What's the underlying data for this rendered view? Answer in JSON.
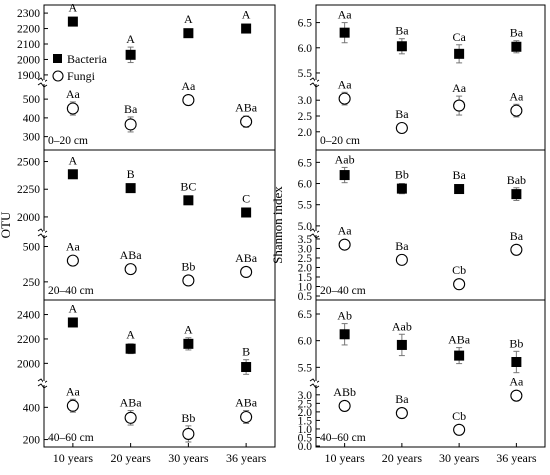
{
  "chart_data": {
    "type": "scatter",
    "legend": {
      "position": "top-left",
      "entries": [
        "Bacteria",
        "Fungi"
      ]
    },
    "x_categories": [
      "10 years",
      "20 years",
      "30 years",
      "36 years"
    ],
    "ylabels": {
      "left": "OTU",
      "right": "Shannon index"
    },
    "panels": [
      {
        "depth": "0–20 cm",
        "column": "OTU",
        "upper": {
          "ylim": [
            1880,
            2320
          ],
          "ticks": [
            1900,
            2000,
            2100,
            2200,
            2300
          ],
          "series": {
            "name": "Bacteria",
            "values": [
              2245,
              2030,
              2170,
              2200
            ],
            "errors": [
              25,
              50,
              25,
              20
            ],
            "labels": [
              "A",
              "A",
              "A",
              "A"
            ]
          }
        },
        "lower": {
          "ylim": [
            250,
            570
          ],
          "ticks": [
            300,
            400,
            500
          ],
          "series": {
            "name": "Fungi",
            "values": [
              450,
              365,
              495,
              380
            ],
            "errors": [
              35,
              40,
              25,
              30
            ],
            "labels": [
              "Aa",
              "Ba",
              "Aa",
              "ABa"
            ]
          }
        }
      },
      {
        "depth": "0–20 cm",
        "column": "Shannon index",
        "upper": {
          "ylim": [
            5.4,
            6.75
          ],
          "ticks": [
            5.5,
            6.0,
            6.5
          ],
          "series": {
            "name": "Bacteria",
            "values": [
              6.3,
              6.03,
              5.88,
              6.02
            ],
            "errors": [
              0.2,
              0.15,
              0.18,
              0.12
            ],
            "labels": [
              "Aa",
              "Ba",
              "Ca",
              "Ba"
            ]
          }
        },
        "lower": {
          "ylim": [
            1.55,
            3.45
          ],
          "ticks": [
            2.0,
            2.5,
            3.0
          ],
          "series": {
            "name": "Fungi",
            "values": [
              3.05,
              2.12,
              2.83,
              2.67
            ],
            "errors": [
              0.2,
              0.15,
              0.3,
              0.2
            ],
            "labels": [
              "Aa",
              "Ba",
              "Aa",
              "Aa"
            ]
          }
        }
      },
      {
        "depth": "20–40 cm",
        "column": "OTU",
        "upper": {
          "ylim": [
            1900,
            2550
          ],
          "ticks": [
            2000,
            2250,
            2500
          ],
          "series": {
            "name": "Bacteria",
            "values": [
              2385,
              2260,
              2150,
              2040
            ],
            "errors": [
              25,
              25,
              15,
              25
            ],
            "labels": [
              "A",
              "B",
              "BC",
              "C"
            ]
          }
        },
        "lower": {
          "ylim": [
            150,
            560
          ],
          "ticks": [
            250,
            500
          ],
          "series": {
            "name": "Fungi",
            "values": [
              400,
              340,
              260,
              320
            ],
            "errors": [
              20,
              15,
              15,
              20
            ],
            "labels": [
              "Aa",
              "ABa",
              "Bb",
              "ABa"
            ]
          }
        }
      },
      {
        "depth": "20–40 cm",
        "column": "Shannon index",
        "upper": {
          "ylim": [
            4.95,
            6.65
          ],
          "ticks": [
            5.0,
            5.5,
            6.0,
            6.5
          ],
          "series": {
            "name": "Bacteria",
            "values": [
              6.2,
              5.88,
              5.87,
              5.75
            ],
            "errors": [
              0.18,
              0.12,
              0.1,
              0.15
            ],
            "labels": [
              "Aab",
              "Bb",
              "Ba",
              "Bab"
            ]
          }
        },
        "lower": {
          "ylim": [
            0.5,
            3.55
          ],
          "ticks": [
            0.5,
            1.0,
            1.5,
            2.0,
            2.5,
            3.0,
            3.5
          ],
          "series": {
            "name": "Fungi",
            "values": [
              3.2,
              2.4,
              1.12,
              2.93
            ],
            "errors": [
              0.1,
              0.08,
              0.22,
              0.08
            ],
            "labels": [
              "Aa",
              "Ba",
              "Cb",
              "Ba"
            ]
          }
        }
      },
      {
        "depth": "40–60 cm",
        "column": "OTU",
        "upper": {
          "ylim": [
            1880,
            2470
          ],
          "ticks": [
            2000,
            2200,
            2400
          ],
          "series": {
            "name": "Bacteria",
            "values": [
              2335,
              2120,
              2160,
              1970
            ],
            "errors": [
              30,
              40,
              50,
              60
            ],
            "labels": [
              "A",
              "A",
              "A",
              "B"
            ]
          }
        },
        "lower": {
          "ylim": [
            160,
            520
          ],
          "ticks": [
            200,
            400
          ],
          "series": {
            "name": "Fungi",
            "values": [
              410,
              335,
              235,
              340
            ],
            "errors": [
              40,
              45,
              50,
              40
            ],
            "labels": [
              "Aa",
              "ABa",
              "Bb",
              "ABa"
            ]
          }
        }
      },
      {
        "depth": "40–60 cm",
        "column": "Shannon index",
        "upper": {
          "ylim": [
            5.3,
            6.65
          ],
          "ticks": [
            5.5,
            6.0,
            6.5
          ],
          "series": {
            "name": "Bacteria",
            "values": [
              6.12,
              5.92,
              5.72,
              5.6
            ],
            "errors": [
              0.2,
              0.2,
              0.15,
              0.2
            ],
            "labels": [
              "Ab",
              "Aab",
              "ABa",
              "Bb"
            ]
          }
        },
        "lower": {
          "ylim": [
            0.0,
            3.4
          ],
          "ticks": [
            0.0,
            0.5,
            1.0,
            1.5,
            2.0,
            2.5,
            3.0
          ],
          "series": {
            "name": "Fungi",
            "values": [
              2.35,
              1.93,
              0.95,
              2.95
            ],
            "errors": [
              0.12,
              0.1,
              0.28,
              0.15
            ],
            "labels": [
              "ABb",
              "Ba",
              "Cb",
              "Aa"
            ]
          }
        }
      }
    ]
  }
}
